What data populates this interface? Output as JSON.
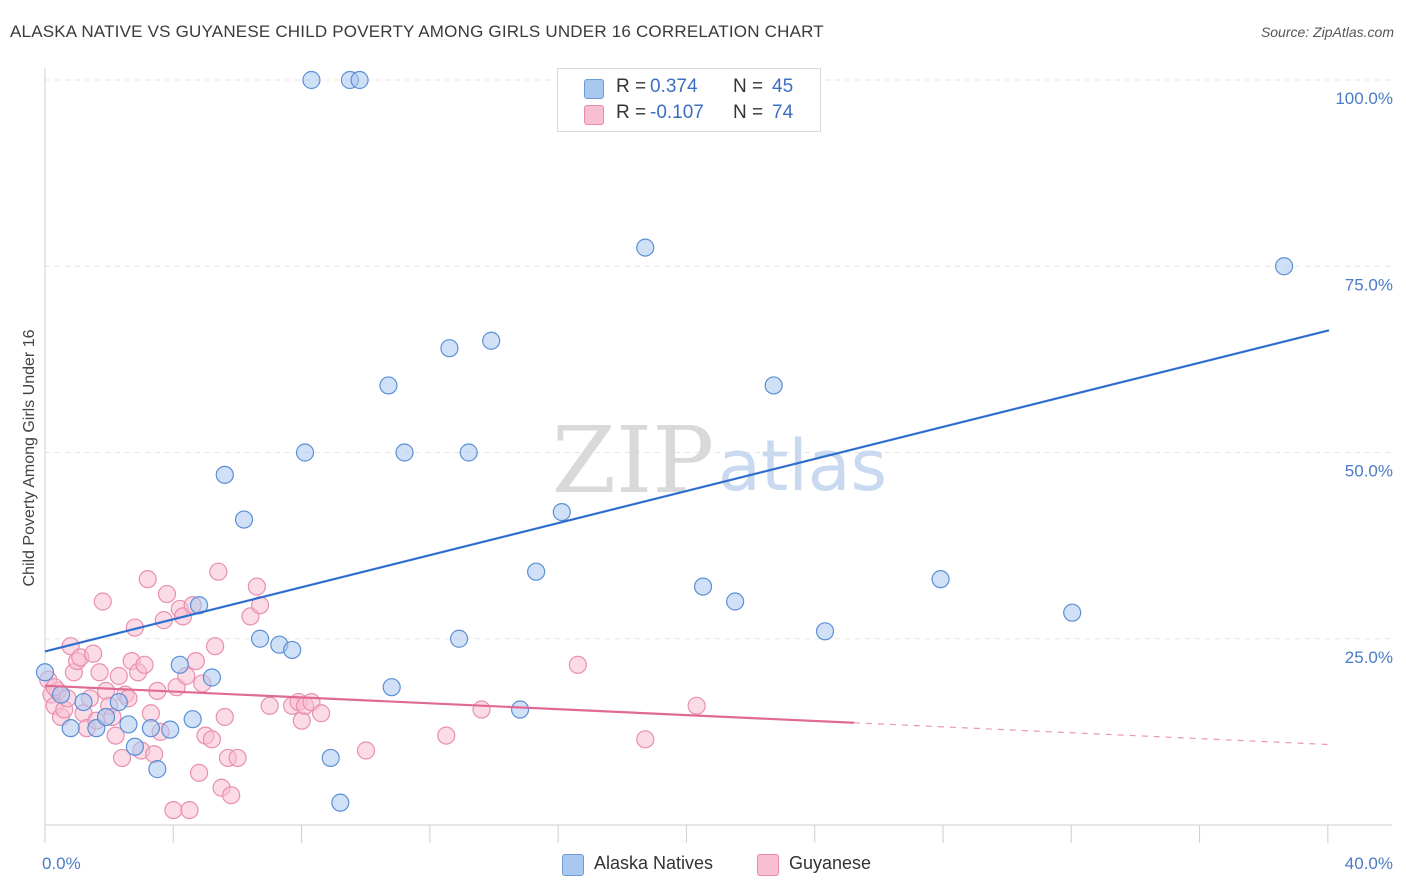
{
  "header": {
    "title": "ALASKA NATIVE VS GUYANESE CHILD POVERTY AMONG GIRLS UNDER 16 CORRELATION CHART",
    "source": "Source: ZipAtlas.com"
  },
  "watermark": {
    "zip": "ZIP",
    "atlas": "atlas"
  },
  "legend": {
    "rows": [
      {
        "r_label": "R =",
        "r_value": "0.374",
        "n_label": "N =",
        "n_value": "45",
        "color": "#a9c8f0",
        "border": "#6f9ad8"
      },
      {
        "r_label": "R =",
        "r_value": "-0.107",
        "n_label": "N =",
        "n_value": "74",
        "color": "#f8bed2",
        "border": "#e88aaa"
      }
    ]
  },
  "chart_data": {
    "type": "scatter",
    "title": "ALASKA NATIVE VS GUYANESE CHILD POVERTY AMONG GIRLS UNDER 16 CORRELATION CHART",
    "xlabel": "",
    "ylabel": "Child Poverty Among Girls Under 16",
    "xlim": [
      0,
      40
    ],
    "ylim": [
      0,
      100
    ],
    "x_tick_labels": [
      "0.0%",
      "40.0%"
    ],
    "y_ticks": [
      25,
      50,
      75,
      100
    ],
    "y_tick_labels": [
      "25.0%",
      "50.0%",
      "75.0%",
      "100.0%"
    ],
    "series": [
      {
        "name": "Alaska Natives",
        "fill": "#a9c8f0",
        "stroke": "#5b8fd6",
        "line_color": "#2f6fcb",
        "trend": {
          "x": [
            0,
            40
          ],
          "y": [
            23.3,
            66.4
          ],
          "dashed_from": null
        },
        "points": [
          [
            0.0,
            20.5
          ],
          [
            0.5,
            17.5
          ],
          [
            0.8,
            13.0
          ],
          [
            1.2,
            16.5
          ],
          [
            1.6,
            13.0
          ],
          [
            1.9,
            14.5
          ],
          [
            2.3,
            16.5
          ],
          [
            2.6,
            13.5
          ],
          [
            2.8,
            10.5
          ],
          [
            3.3,
            13.0
          ],
          [
            3.5,
            7.5
          ],
          [
            3.9,
            12.8
          ],
          [
            4.2,
            21.5
          ],
          [
            4.6,
            14.2
          ],
          [
            4.8,
            29.5
          ],
          [
            5.2,
            19.8
          ],
          [
            5.6,
            47.0
          ],
          [
            6.2,
            41.0
          ],
          [
            6.7,
            25.0
          ],
          [
            7.3,
            24.2
          ],
          [
            7.7,
            23.5
          ],
          [
            8.1,
            50.0
          ],
          [
            8.3,
            100.0
          ],
          [
            8.9,
            9.0
          ],
          [
            9.2,
            3.0
          ],
          [
            9.5,
            100.0
          ],
          [
            9.8,
            100.0
          ],
          [
            10.7,
            59.0
          ],
          [
            10.8,
            18.5
          ],
          [
            11.2,
            50.0
          ],
          [
            12.6,
            64.0
          ],
          [
            12.9,
            25.0
          ],
          [
            13.2,
            50.0
          ],
          [
            13.9,
            65.0
          ],
          [
            14.8,
            15.5
          ],
          [
            15.3,
            34.0
          ],
          [
            16.1,
            42.0
          ],
          [
            18.7,
            77.5
          ],
          [
            20.5,
            32.0
          ],
          [
            21.5,
            30.0
          ],
          [
            22.7,
            59.0
          ],
          [
            24.3,
            26.0
          ],
          [
            27.9,
            33.0
          ],
          [
            32.0,
            28.5
          ],
          [
            38.6,
            75.0
          ]
        ]
      },
      {
        "name": "Guyanese",
        "fill": "#f8bed2",
        "stroke": "#e98fb0",
        "line_color": "#e06a95",
        "trend": {
          "x": [
            0,
            40
          ],
          "y": [
            18.7,
            10.8
          ],
          "dashed_from": 25.2
        },
        "points": [
          [
            0.1,
            19.5
          ],
          [
            0.2,
            17.5
          ],
          [
            0.3,
            16.0
          ],
          [
            0.4,
            18.0
          ],
          [
            0.5,
            14.5
          ],
          [
            0.6,
            15.5
          ],
          [
            0.7,
            17.0
          ],
          [
            0.8,
            24.0
          ],
          [
            0.9,
            20.5
          ],
          [
            1.0,
            22.0
          ],
          [
            1.1,
            22.5
          ],
          [
            1.2,
            15.0
          ],
          [
            1.3,
            13.0
          ],
          [
            1.4,
            17.0
          ],
          [
            1.5,
            23.0
          ],
          [
            1.6,
            14.0
          ],
          [
            1.7,
            20.5
          ],
          [
            1.8,
            30.0
          ],
          [
            1.9,
            18.0
          ],
          [
            2.0,
            16.0
          ],
          [
            2.1,
            14.5
          ],
          [
            2.2,
            12.0
          ],
          [
            2.3,
            20.0
          ],
          [
            2.4,
            9.0
          ],
          [
            2.5,
            17.5
          ],
          [
            2.6,
            17.0
          ],
          [
            2.7,
            22.0
          ],
          [
            2.8,
            26.5
          ],
          [
            2.9,
            20.5
          ],
          [
            3.0,
            10.0
          ],
          [
            3.1,
            21.5
          ],
          [
            3.2,
            33.0
          ],
          [
            3.3,
            15.0
          ],
          [
            3.4,
            9.5
          ],
          [
            3.5,
            18.0
          ],
          [
            3.6,
            12.5
          ],
          [
            3.7,
            27.5
          ],
          [
            3.8,
            31.0
          ],
          [
            4.0,
            2.0
          ],
          [
            4.1,
            18.5
          ],
          [
            4.2,
            29.0
          ],
          [
            4.3,
            28.0
          ],
          [
            4.4,
            20.0
          ],
          [
            4.5,
            2.0
          ],
          [
            4.6,
            29.5
          ],
          [
            4.7,
            22.0
          ],
          [
            4.8,
            7.0
          ],
          [
            4.9,
            19.0
          ],
          [
            5.0,
            12.0
          ],
          [
            5.2,
            11.5
          ],
          [
            5.3,
            24.0
          ],
          [
            5.4,
            34.0
          ],
          [
            5.5,
            5.0
          ],
          [
            5.6,
            14.5
          ],
          [
            5.7,
            9.0
          ],
          [
            5.8,
            4.0
          ],
          [
            6.0,
            9.0
          ],
          [
            6.4,
            28.0
          ],
          [
            6.6,
            32.0
          ],
          [
            6.7,
            29.5
          ],
          [
            7.0,
            16.0
          ],
          [
            7.7,
            16.0
          ],
          [
            7.9,
            16.5
          ],
          [
            8.0,
            14.0
          ],
          [
            8.1,
            16.0
          ],
          [
            8.3,
            16.5
          ],
          [
            8.6,
            15.0
          ],
          [
            10.0,
            10.0
          ],
          [
            12.5,
            12.0
          ],
          [
            13.6,
            15.5
          ],
          [
            16.6,
            21.5
          ],
          [
            18.7,
            11.5
          ],
          [
            20.3,
            16.0
          ],
          [
            0.3,
            18.5
          ]
        ]
      }
    ]
  },
  "bottom_legend": [
    {
      "label": "Alaska Natives",
      "color": "#a9c8f0",
      "border": "#6f9ad8"
    },
    {
      "label": "Guyanese",
      "color": "#f8bed2",
      "border": "#e88aaa"
    }
  ]
}
